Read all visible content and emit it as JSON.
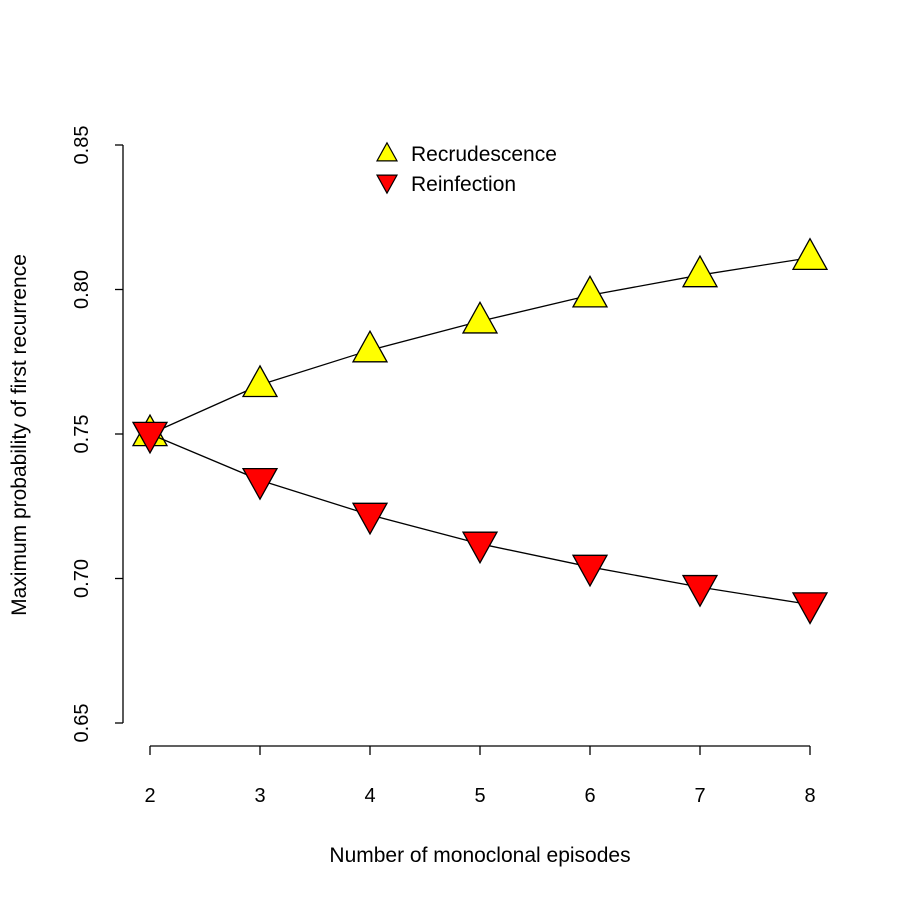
{
  "chart_data": {
    "type": "line",
    "title": "",
    "xlabel": "Number of monoclonal episodes",
    "ylabel": "Maximum probability of first recurrence",
    "xlim": [
      2,
      8
    ],
    "ylim": [
      0.65,
      0.85
    ],
    "x": [
      2,
      3,
      4,
      5,
      6,
      7,
      8
    ],
    "x_ticks": [
      "2",
      "3",
      "4",
      "5",
      "6",
      "7",
      "8"
    ],
    "y_ticks": [
      "0.65",
      "0.70",
      "0.75",
      "0.80",
      "0.85"
    ],
    "y_tick_values": [
      0.65,
      0.7,
      0.75,
      0.8,
      0.85
    ],
    "grid": false,
    "legend_position": "top-center",
    "series": [
      {
        "name": "Recrudescence",
        "marker": "triangle-up",
        "color": "#ffff00",
        "values": [
          0.75,
          0.767,
          0.779,
          0.789,
          0.798,
          0.805,
          0.811
        ]
      },
      {
        "name": "Reinfection",
        "marker": "triangle-down",
        "color": "#ff0000",
        "values": [
          0.75,
          0.734,
          0.722,
          0.712,
          0.704,
          0.697,
          0.691
        ]
      }
    ]
  }
}
